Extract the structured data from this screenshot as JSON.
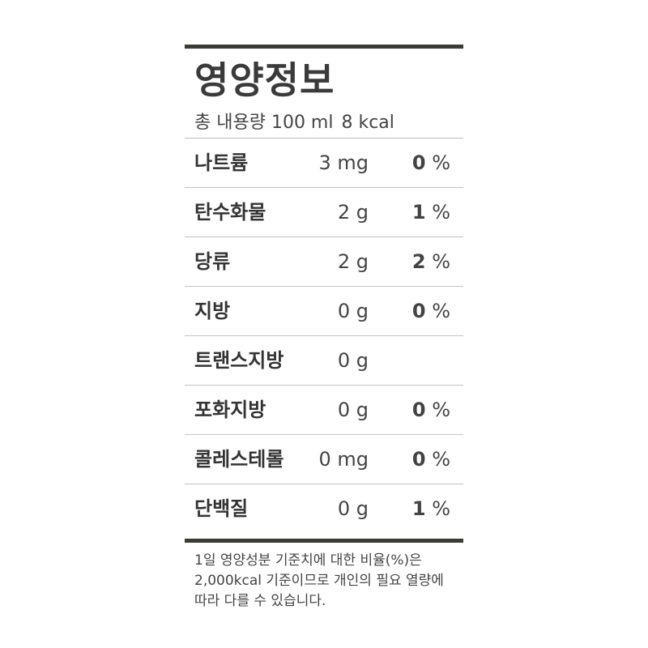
{
  "title": "영양정보",
  "serving": {
    "label": "총 내용량 100 ml",
    "calories": "8 kcal"
  },
  "nutrients": [
    {
      "name": "나트륨",
      "amount": "3 mg",
      "percent": "0",
      "unit": "%"
    },
    {
      "name": "탄수화물",
      "amount": "2 g",
      "percent": "1",
      "unit": "%"
    },
    {
      "name": "당류",
      "amount": "2 g",
      "percent": "2",
      "unit": "%"
    },
    {
      "name": "지방",
      "amount": "0 g",
      "percent": "0",
      "unit": "%"
    },
    {
      "name": "트랜스지방",
      "amount": "0 g",
      "percent": "",
      "unit": ""
    },
    {
      "name": "포화지방",
      "amount": "0 g",
      "percent": "0",
      "unit": "%"
    },
    {
      "name": "콜레스테롤",
      "amount": "0 mg",
      "percent": "0",
      "unit": "%"
    },
    {
      "name": "단백질",
      "amount": "0 g",
      "percent": "1",
      "unit": "%"
    }
  ],
  "footnote": [
    "1일 영양성분 기준치에 대한 비율(%)은",
    "2,000kcal 기준이므로 개인의 필요 열량에",
    "따라 다를 수 있습니다."
  ],
  "colors": {
    "rule": "#3a3b33",
    "text": "#3b3b3b"
  }
}
